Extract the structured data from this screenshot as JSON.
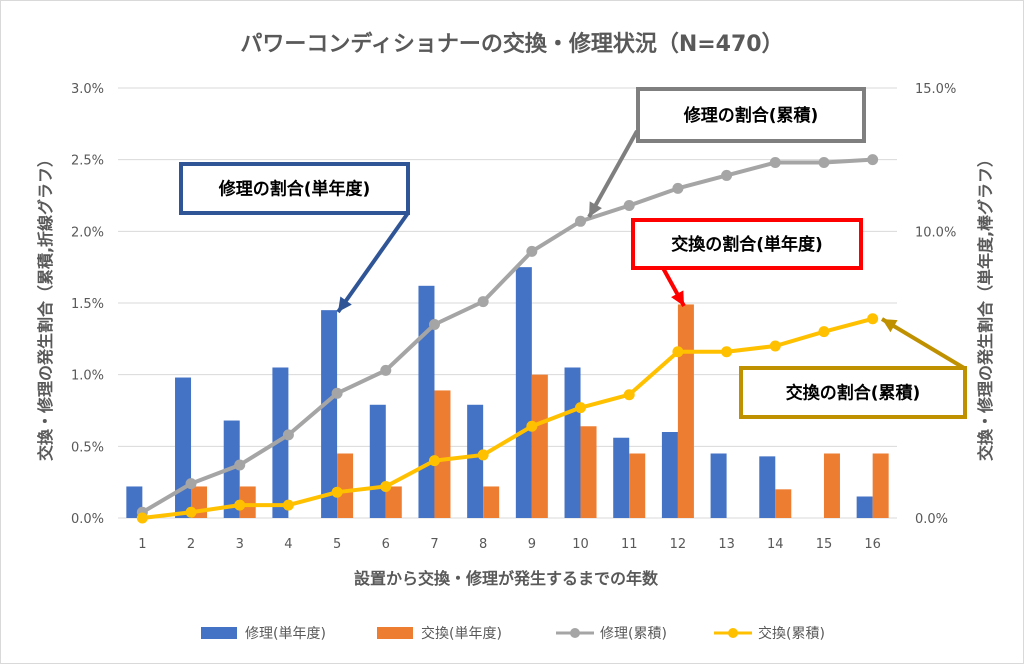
{
  "chart_data": {
    "type": "bar",
    "title": "パワーコンディショナーの交換・修理状況（N=470）",
    "xlabel": "設置から交換・修理が発生するまでの年数",
    "ylabel_left": "交換・修理の発生割合（累積,折線グラフ）",
    "ylabel_right": "交換・修理の発生割合（単年度,棒グラフ）",
    "categories": [
      "1",
      "2",
      "3",
      "4",
      "5",
      "6",
      "7",
      "8",
      "9",
      "10",
      "11",
      "12",
      "13",
      "14",
      "15",
      "16"
    ],
    "left_axis": {
      "min": 0,
      "max": 3.0,
      "ticks": [
        "0.0%",
        "0.5%",
        "1.0%",
        "1.5%",
        "2.0%",
        "2.5%",
        "3.0%"
      ]
    },
    "right_axis": {
      "min": 0,
      "max": 15.0,
      "ticks": [
        "0.0%",
        "5.0%",
        "10.0%",
        "15.0%"
      ]
    },
    "grid": true,
    "legend_position": "bottom",
    "series": [
      {
        "name": "修理(単年度)",
        "kind": "bar",
        "color": "#4472c4",
        "values": [
          0.22,
          0.98,
          0.68,
          1.05,
          1.45,
          0.79,
          1.62,
          0.79,
          1.75,
          1.05,
          0.56,
          0.6,
          0.45,
          0.43,
          0.0,
          0.15
        ]
      },
      {
        "name": "交換(単年度)",
        "kind": "bar",
        "color": "#ed7d31",
        "values": [
          0.0,
          0.22,
          0.22,
          0.0,
          0.45,
          0.22,
          0.89,
          0.22,
          1.0,
          0.64,
          0.45,
          1.49,
          0.0,
          0.2,
          0.45,
          0.45
        ]
      },
      {
        "name": "修理(累積)",
        "kind": "line",
        "color": "#a5a5a5",
        "values": [
          0.2,
          1.2,
          1.85,
          2.9,
          4.35,
          5.15,
          6.75,
          7.55,
          9.3,
          10.35,
          10.9,
          11.5,
          11.95,
          12.4,
          12.4,
          12.5
        ]
      },
      {
        "name": "交換(累積)",
        "kind": "line",
        "color": "#ffc000",
        "values": [
          0.0,
          0.2,
          0.45,
          0.45,
          0.9,
          1.1,
          2.0,
          2.2,
          3.2,
          3.85,
          4.3,
          5.8,
          5.8,
          6.0,
          6.5,
          6.95
        ]
      }
    ],
    "annotations": [
      {
        "text": "修理の割合(単年度)",
        "color": "#2f5597",
        "points_to_category": "5"
      },
      {
        "text": "修理の割合(累積)",
        "color": "#7f7f7f",
        "points_to_category": "10"
      },
      {
        "text": "交換の割合(単年度)",
        "color": "#ff0000",
        "points_to_category": "12"
      },
      {
        "text": "交換の割合(累積)",
        "color": "#bf9000",
        "points_to_category": "16"
      }
    ]
  }
}
